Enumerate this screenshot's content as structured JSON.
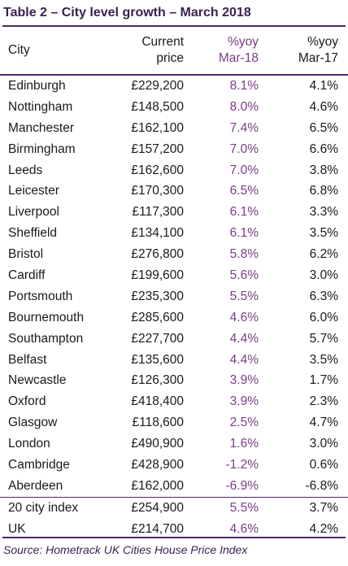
{
  "title": "Table 2 – City level growth – March 2018",
  "headers": {
    "city": "City",
    "price_line1": "Current",
    "price_line2": "price",
    "yoy18_line1": "%yoy",
    "yoy18_line2": "Mar-18",
    "yoy17_line1": "%yoy",
    "yoy17_line2": "Mar-17"
  },
  "rows": [
    {
      "city": "Edinburgh",
      "price": "£229,200",
      "yoy18": "8.1%",
      "yoy17": "4.1%"
    },
    {
      "city": "Nottingham",
      "price": "£148,500",
      "yoy18": "8.0%",
      "yoy17": "4.6%"
    },
    {
      "city": "Manchester",
      "price": "£162,100",
      "yoy18": "7.4%",
      "yoy17": "6.5%"
    },
    {
      "city": "Birmingham",
      "price": "£157,200",
      "yoy18": "7.0%",
      "yoy17": "6.6%"
    },
    {
      "city": "Leeds",
      "price": "£162,600",
      "yoy18": "7.0%",
      "yoy17": "3.8%"
    },
    {
      "city": "Leicester",
      "price": "£170,300",
      "yoy18": "6.5%",
      "yoy17": "6.8%"
    },
    {
      "city": "Liverpool",
      "price": "£117,300",
      "yoy18": "6.1%",
      "yoy17": "3.3%"
    },
    {
      "city": "Sheffield",
      "price": "£134,100",
      "yoy18": "6.1%",
      "yoy17": "3.5%"
    },
    {
      "city": "Bristol",
      "price": "£276,800",
      "yoy18": "5.8%",
      "yoy17": "6.2%"
    },
    {
      "city": "Cardiff",
      "price": "£199,600",
      "yoy18": "5.6%",
      "yoy17": "3.0%"
    },
    {
      "city": "Portsmouth",
      "price": "£235,300",
      "yoy18": "5.5%",
      "yoy17": "6.3%"
    },
    {
      "city": "Bournemouth",
      "price": "£285,600",
      "yoy18": "4.6%",
      "yoy17": "6.0%"
    },
    {
      "city": "Southampton",
      "price": "£227,700",
      "yoy18": "4.4%",
      "yoy17": "5.7%"
    },
    {
      "city": "Belfast",
      "price": "£135,600",
      "yoy18": "4.4%",
      "yoy17": "3.5%"
    },
    {
      "city": "Newcastle",
      "price": "£126,300",
      "yoy18": "3.9%",
      "yoy17": "1.7%"
    },
    {
      "city": "Oxford",
      "price": "£418,400",
      "yoy18": "3.9%",
      "yoy17": "2.3%"
    },
    {
      "city": "Glasgow",
      "price": "£118,600",
      "yoy18": "2.5%",
      "yoy17": "4.7%"
    },
    {
      "city": "London",
      "price": "£490,900",
      "yoy18": "1.6%",
      "yoy17": "3.0%"
    },
    {
      "city": "Cambridge",
      "price": "£428,900",
      "yoy18": "-1.2%",
      "yoy17": "0.6%"
    },
    {
      "city": "Aberdeen",
      "price": "£162,000",
      "yoy18": "-6.9%",
      "yoy17": "-6.8%"
    },
    {
      "city": "20 city index",
      "price": "£254,900",
      "yoy18": "5.5%",
      "yoy17": "3.7%"
    },
    {
      "city": "UK",
      "price": "£214,700",
      "yoy18": "4.6%",
      "yoy17": "4.2%"
    }
  ],
  "source": "Source: Hometrack UK Cities House Price Index",
  "colors": {
    "accent": "#7a3d86",
    "rule": "#4a2b60",
    "title": "#3a1f4f"
  }
}
